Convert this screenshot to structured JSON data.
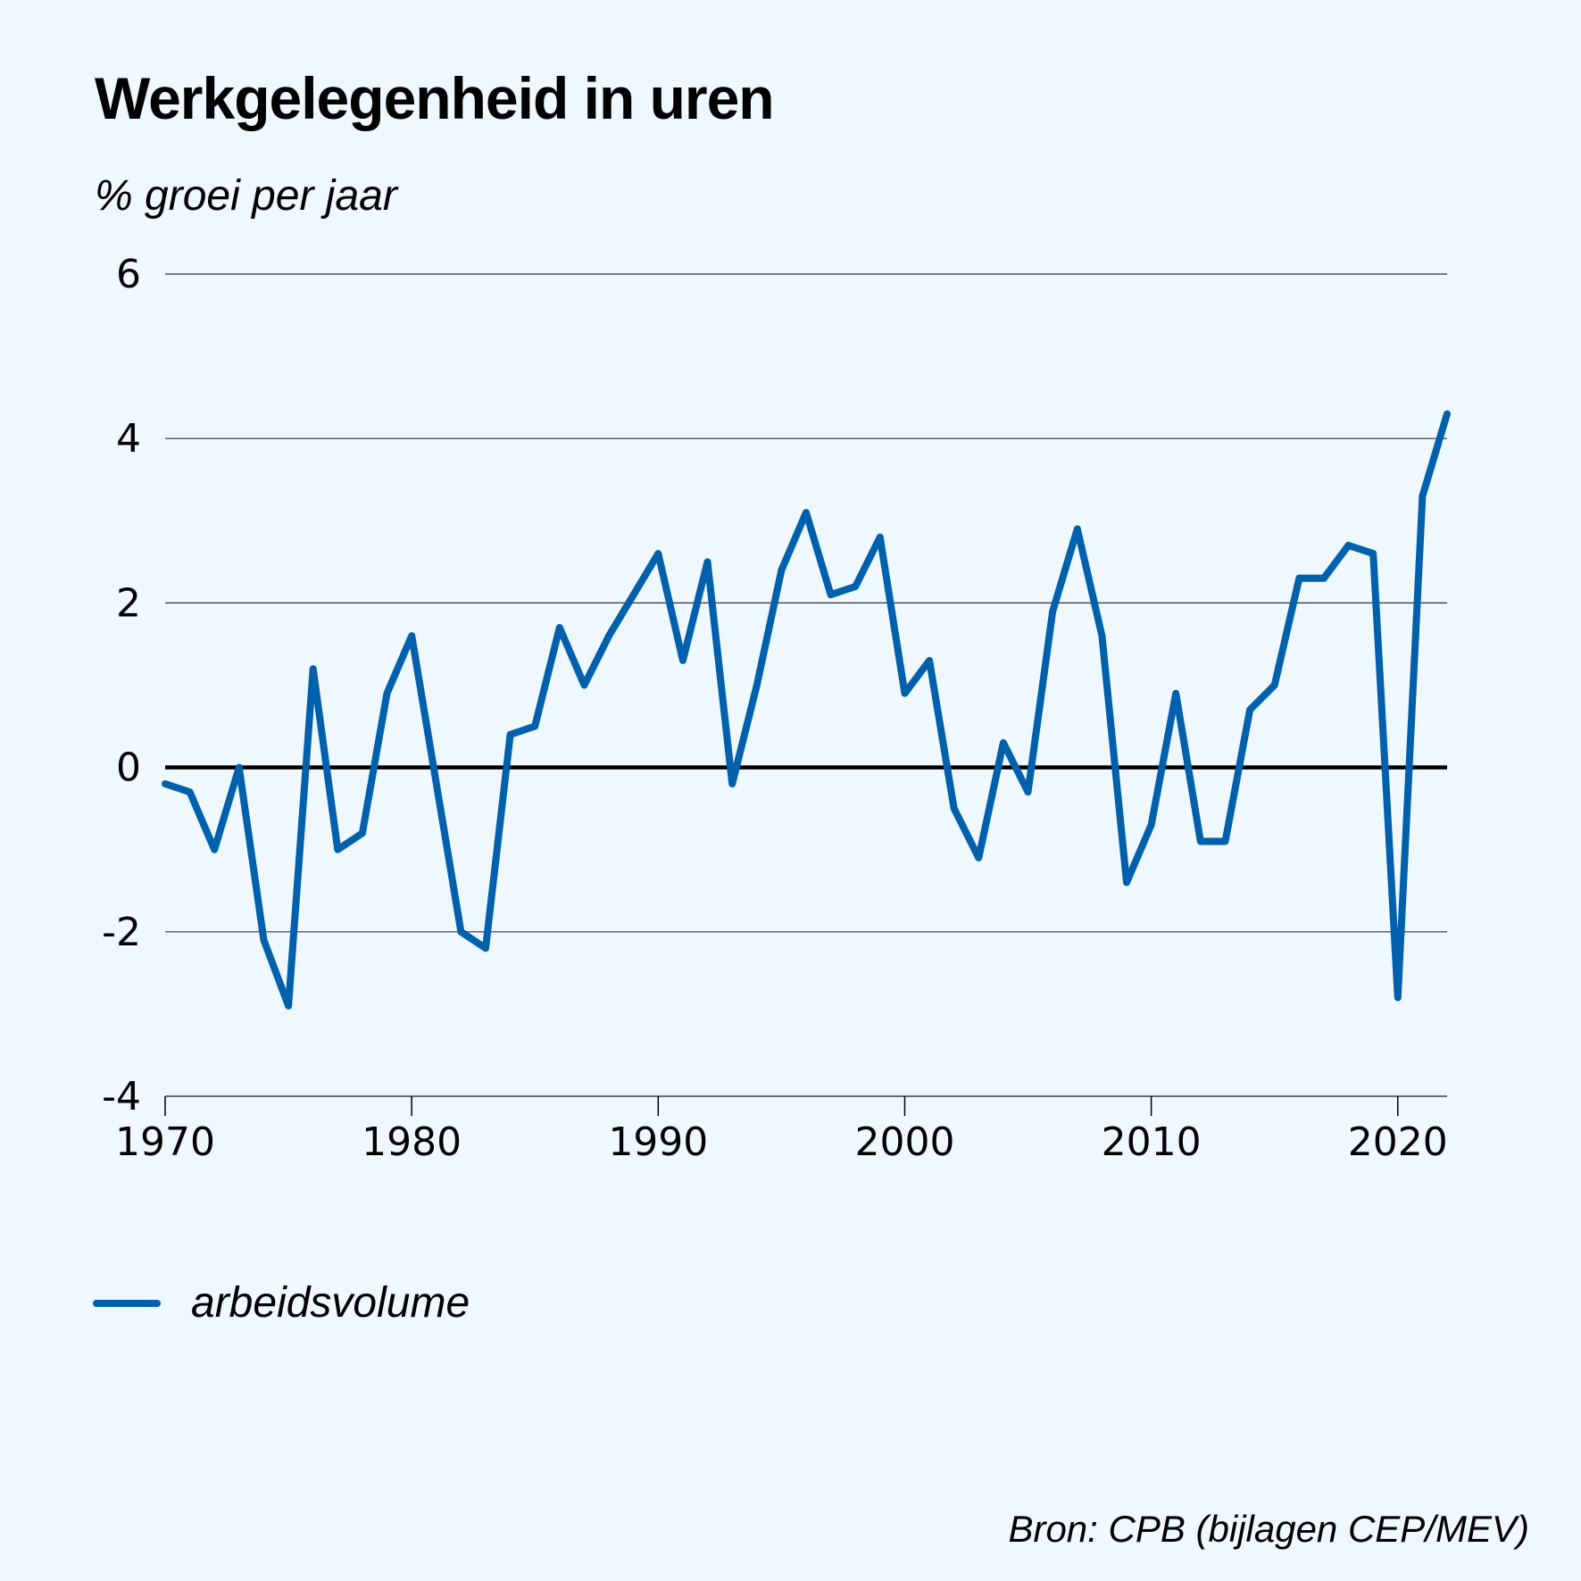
{
  "chart_data": {
    "type": "line",
    "title": "Werkgelegenheid in uren",
    "ylabel": "% groei per jaar",
    "xlabel": "",
    "xlim": [
      1970,
      2022
    ],
    "ylim": [
      -4,
      6
    ],
    "yticks": [
      "-4",
      "-2",
      "0",
      "2",
      "4",
      "6"
    ],
    "ytick_values": [
      -4,
      -2,
      0,
      2,
      4,
      6
    ],
    "xticks": [
      "1970",
      "1980",
      "1990",
      "2000",
      "2010",
      "2020"
    ],
    "xtick_values": [
      1970,
      1980,
      1990,
      2000,
      2010,
      2020
    ],
    "grid": true,
    "legend_position": "bottom-left",
    "series": [
      {
        "name": "arbeidsvolume",
        "color": "#0060ac",
        "x": [
          1970,
          1971,
          1972,
          1973,
          1974,
          1975,
          1976,
          1977,
          1978,
          1979,
          1980,
          1981,
          1982,
          1983,
          1984,
          1985,
          1986,
          1987,
          1988,
          1989,
          1990,
          1991,
          1992,
          1993,
          1994,
          1995,
          1996,
          1997,
          1998,
          1999,
          2000,
          2001,
          2002,
          2003,
          2004,
          2005,
          2006,
          2007,
          2008,
          2009,
          2010,
          2011,
          2012,
          2013,
          2014,
          2015,
          2016,
          2017,
          2018,
          2019,
          2020,
          2021,
          2022
        ],
        "values": [
          -0.2,
          -0.3,
          -1.0,
          0.0,
          -2.1,
          -2.9,
          1.2,
          -1.0,
          -0.8,
          0.9,
          1.6,
          -0.2,
          -2.0,
          -2.2,
          0.4,
          0.5,
          1.7,
          1.0,
          1.6,
          2.1,
          2.6,
          1.3,
          2.5,
          -0.2,
          1.0,
          2.4,
          3.1,
          2.1,
          2.2,
          2.8,
          0.9,
          1.3,
          -0.5,
          -1.1,
          0.3,
          -0.3,
          1.9,
          2.9,
          1.6,
          -1.4,
          -0.7,
          0.9,
          -0.9,
          -0.9,
          0.7,
          1.0,
          2.3,
          2.3,
          2.7,
          2.6,
          -2.8,
          3.3,
          4.3
        ]
      }
    ],
    "source": "Bron: CPB (bijlagen CEP/MEV)"
  }
}
